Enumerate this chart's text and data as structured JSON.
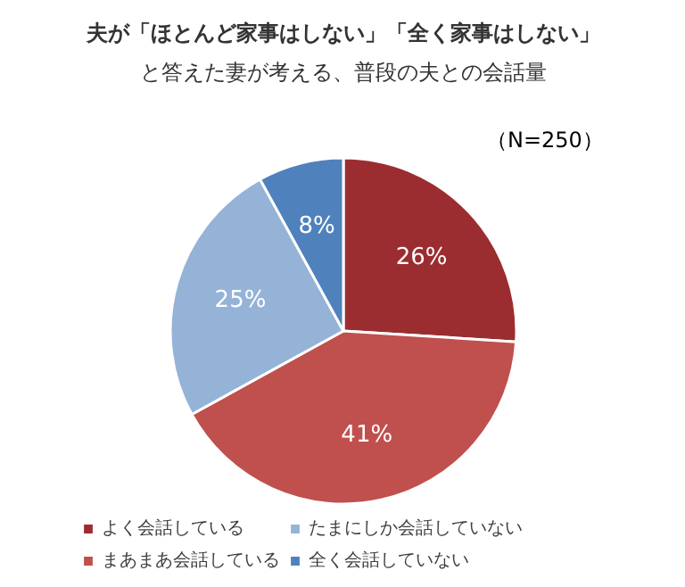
{
  "chart_data": {
    "type": "pie",
    "title": "夫が「ほとんど家事はしない」「全く家事はしない」",
    "subtitle": "と答えた妻が考える、普段の夫との会話量",
    "annotations": [
      "（N=250）"
    ],
    "categories": [
      "よく会話している",
      "まあまあ会話している",
      "たまにしか会話していない",
      "全く会話していない"
    ],
    "values": [
      26,
      41,
      25,
      8
    ],
    "colors": [
      "#9b2d30",
      "#c0504d",
      "#95b3d7",
      "#4f81bd"
    ],
    "value_labels": [
      "26%",
      "41%",
      "25%",
      "8%"
    ],
    "legend": "bottom"
  }
}
